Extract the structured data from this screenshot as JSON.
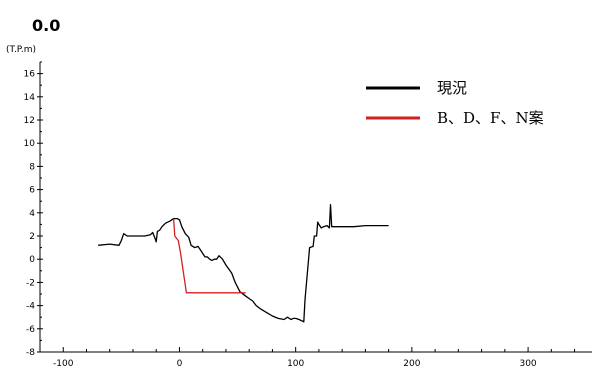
{
  "chart_data": {
    "type": "line",
    "title": "0.0",
    "ylabel": "(T.P.m)",
    "xlabel": "",
    "xlim": [
      -120,
      355
    ],
    "ylim": [
      -8,
      17
    ],
    "x_ticks": [
      -100,
      0,
      100,
      200,
      300
    ],
    "x_tick_labels": [
      "-100",
      "0",
      "100",
      "200",
      "300"
    ],
    "x_minor_step": 20,
    "y_ticks": [
      -8,
      -6,
      -4,
      -2,
      0,
      2,
      4,
      6,
      8,
      10,
      12,
      14,
      16
    ],
    "y_tick_labels": [
      "-8",
      "-6",
      "-4",
      "-2",
      "0",
      "2",
      "4",
      "6",
      "8",
      "10",
      "12",
      "14",
      "16"
    ],
    "grid": false,
    "legend_position": "top-right",
    "series": [
      {
        "name": "現況",
        "color": "#000000",
        "points": [
          [
            -70,
            1.2
          ],
          [
            -60,
            1.3
          ],
          [
            -52,
            1.2
          ],
          [
            -50,
            1.6
          ],
          [
            -48,
            2.2
          ],
          [
            -45,
            2.0
          ],
          [
            -40,
            2.0
          ],
          [
            -35,
            2.0
          ],
          [
            -30,
            2.0
          ],
          [
            -25,
            2.1
          ],
          [
            -23,
            2.3
          ],
          [
            -21,
            1.8
          ],
          [
            -20,
            1.5
          ],
          [
            -19,
            2.4
          ],
          [
            -17,
            2.5
          ],
          [
            -15,
            2.8
          ],
          [
            -12,
            3.1
          ],
          [
            -8,
            3.3
          ],
          [
            -5,
            3.5
          ],
          [
            -2,
            3.5
          ],
          [
            0,
            3.4
          ],
          [
            2,
            2.8
          ],
          [
            5,
            2.2
          ],
          [
            8,
            1.9
          ],
          [
            10,
            1.2
          ],
          [
            13,
            1.0
          ],
          [
            16,
            1.1
          ],
          [
            18,
            0.8
          ],
          [
            20,
            0.5
          ],
          [
            22,
            0.2
          ],
          [
            24,
            0.2
          ],
          [
            26,
            0.0
          ],
          [
            28,
            -0.1
          ],
          [
            30,
            0.0
          ],
          [
            32,
            0.0
          ],
          [
            34,
            0.3
          ],
          [
            37,
            0.0
          ],
          [
            40,
            -0.5
          ],
          [
            45,
            -1.2
          ],
          [
            48,
            -2.0
          ],
          [
            52,
            -2.8
          ],
          [
            56,
            -3.1
          ],
          [
            60,
            -3.4
          ],
          [
            63,
            -3.6
          ],
          [
            66,
            -4.0
          ],
          [
            70,
            -4.3
          ],
          [
            75,
            -4.6
          ],
          [
            80,
            -4.9
          ],
          [
            85,
            -5.1
          ],
          [
            90,
            -5.2
          ],
          [
            93,
            -5.0
          ],
          [
            96,
            -5.2
          ],
          [
            98,
            -5.1
          ],
          [
            100,
            -5.1
          ],
          [
            103,
            -5.2
          ],
          [
            107,
            -5.4
          ],
          [
            108,
            -3.5
          ],
          [
            112,
            1.0
          ],
          [
            115,
            1.1
          ],
          [
            116,
            2.0
          ],
          [
            118,
            2.0
          ],
          [
            119,
            3.2
          ],
          [
            120,
            3.0
          ],
          [
            122,
            2.7
          ],
          [
            124,
            2.8
          ],
          [
            127,
            2.9
          ],
          [
            129,
            2.7
          ],
          [
            130,
            4.7
          ],
          [
            131,
            2.8
          ],
          [
            140,
            2.8
          ],
          [
            150,
            2.8
          ],
          [
            160,
            2.9
          ],
          [
            170,
            2.9
          ],
          [
            180,
            2.9
          ]
        ]
      },
      {
        "name": "B、D、F、N案",
        "color": "#d22020",
        "points": [
          [
            -5,
            3.5
          ],
          [
            -4,
            2.0
          ],
          [
            -1,
            1.6
          ],
          [
            1,
            0.5
          ],
          [
            6,
            -2.9
          ],
          [
            50,
            -2.9
          ],
          [
            57,
            -2.9
          ]
        ]
      }
    ]
  }
}
